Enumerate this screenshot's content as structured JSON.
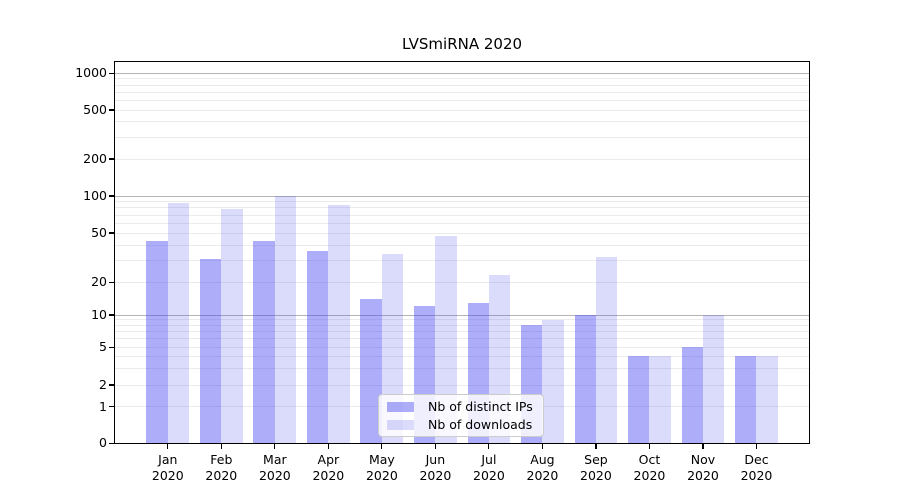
{
  "chart_data": {
    "type": "bar",
    "title": "LVSmiRNA 2020",
    "x_year": "2020",
    "categories": [
      "Jan",
      "Feb",
      "Mar",
      "Apr",
      "May",
      "Jun",
      "Jul",
      "Aug",
      "Sep",
      "Oct",
      "Nov",
      "Dec"
    ],
    "y_ticks": [
      0,
      1,
      2,
      5,
      10,
      20,
      50,
      100,
      200,
      500,
      1000
    ],
    "y_scale": "log-like, zero baseline at bottom",
    "grid": "horizontal, log minor lines light / decade lines darker",
    "legend_position": "inside plot, lower center",
    "series": [
      {
        "name": "Nb of distinct IPs",
        "color": "rgba(77,77,242,0.46)",
        "values": [
          43,
          31,
          43,
          36,
          14,
          12,
          13,
          8,
          10,
          4,
          5,
          4
        ]
      },
      {
        "name": "Nb of downloads",
        "color": "rgba(77,77,235,0.20)",
        "values": [
          88,
          78,
          100,
          84,
          34,
          47,
          23,
          9,
          32,
          4,
          10,
          4
        ]
      }
    ],
    "colors": {
      "grid_major": "#b4b4b4",
      "grid_minor": "#ebebeb",
      "axis_frame": "#000000",
      "legend_border": "#cccccc",
      "legend_background": "rgba(255,255,255,0.8)",
      "text": "#000000",
      "background": "#ffffff"
    }
  }
}
